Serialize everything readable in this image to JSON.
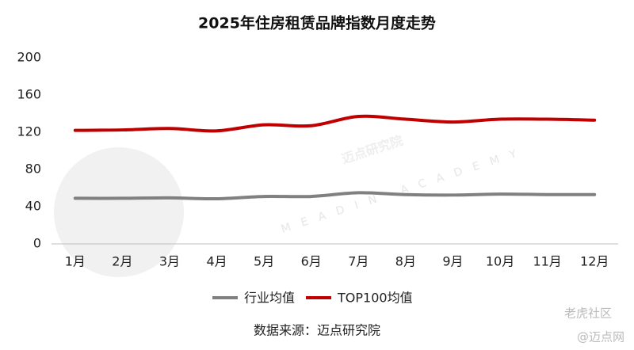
{
  "chart_data": {
    "type": "line",
    "title": "2025年住房租赁品牌指数月度走势",
    "source": "数据来源：迈点研究院",
    "watermarks": [
      "迈点研究院",
      "MEADIN ACADEMY",
      "老虎社区",
      "@迈点网"
    ],
    "categories": [
      "1月",
      "2月",
      "3月",
      "4月",
      "5月",
      "6月",
      "7月",
      "8月",
      "9月",
      "10月",
      "11月",
      "12月"
    ],
    "series": [
      {
        "name": "行业均值",
        "color": "#808080",
        "values": [
          49,
          49,
          49.5,
          48.5,
          51,
          51,
          55,
          53,
          52.5,
          53.5,
          53,
          53
        ]
      },
      {
        "name": "TOP100均值",
        "color": "#c00000",
        "values": [
          122,
          122.5,
          124,
          121.5,
          128,
          127,
          137,
          134,
          131,
          134,
          134,
          133
        ]
      }
    ],
    "ylim": [
      0,
      200
    ],
    "yticks": [
      0,
      40,
      80,
      120,
      160,
      200
    ],
    "grid": false,
    "legend": "bottom"
  }
}
